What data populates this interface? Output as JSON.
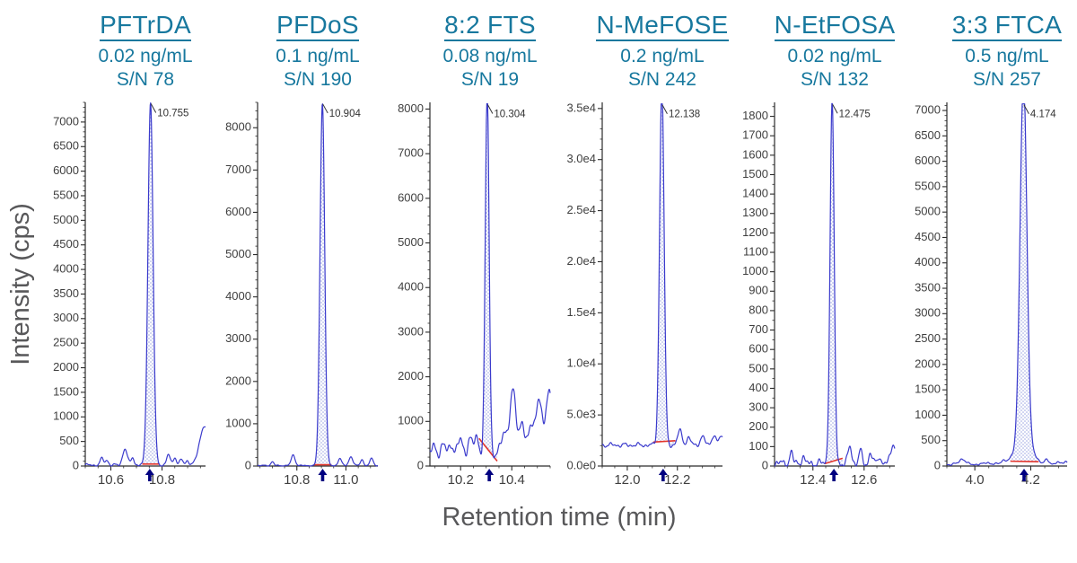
{
  "figure": {
    "y_axis_title": "Intensity (cps)",
    "x_axis_title": "Retention time (min)"
  },
  "colors": {
    "header_teal": "#17789e",
    "trace_blue": "#3a3acc",
    "peak_fill_dot": "#97a0e0",
    "baseline_red": "#e2342b",
    "arrow_navy": "#000080",
    "tick_text": "#3f3f3f",
    "axis_line": "#2b2b2b",
    "axis_title_gray": "#58585a",
    "peak_label_text": "#333333"
  },
  "chart_data": [
    {
      "type": "line",
      "analyte": "PFTrDA",
      "concentration": "0.02 ng/mL",
      "signal_to_noise": "S/N 78",
      "peak_label": "10.755",
      "peak_retention_min": 10.755,
      "arrow_retention_min": 10.752,
      "xlim": [
        10.5,
        10.97
      ],
      "ylim_top": 7400,
      "apex_cps": 7390,
      "baseline_cps": 18,
      "noise_cps": 35,
      "integration_baseline": {
        "start": [
          10.723,
          40
        ],
        "end": [
          10.79,
          40
        ]
      },
      "y_ticks": {
        "values": [
          0,
          500,
          1000,
          1500,
          2000,
          2500,
          3000,
          3500,
          4000,
          4500,
          5000,
          5500,
          6000,
          6500,
          7000
        ],
        "labels": [
          "0",
          "500",
          "1000",
          "1500",
          "2000",
          "2500",
          "3000",
          "3500",
          "4000",
          "4500",
          "5000",
          "5500",
          "6000",
          "6500",
          "7000"
        ]
      },
      "y_minor_step": 100,
      "x_ticks": {
        "values": [
          10.6,
          10.8
        ],
        "labels": [
          "10.6",
          "10.8"
        ]
      },
      "x_minor_step": 0.05
    },
    {
      "type": "line",
      "analyte": "PFDoS",
      "concentration": "0.1 ng/mL",
      "signal_to_noise": "S/N 190",
      "peak_label": "10.904",
      "peak_retention_min": 10.904,
      "arrow_retention_min": 10.905,
      "xlim": [
        10.64,
        11.13
      ],
      "ylim_top": 8600,
      "apex_cps": 8580,
      "baseline_cps": 10,
      "noise_cps": 18,
      "integration_baseline": {
        "start": [
          10.869,
          30
        ],
        "end": [
          10.941,
          30
        ]
      },
      "y_ticks": {
        "values": [
          0,
          1000,
          2000,
          3000,
          4000,
          5000,
          6000,
          7000,
          8000
        ],
        "labels": [
          "0",
          "1000",
          "2000",
          "3000",
          "4000",
          "5000",
          "6000",
          "7000",
          "8000"
        ]
      },
      "y_minor_step": 200,
      "x_ticks": {
        "values": [
          10.8,
          11.0
        ],
        "labels": [
          "10.8",
          "11.0"
        ]
      },
      "x_minor_step": 0.05
    },
    {
      "type": "line",
      "analyte": "8:2 FTS",
      "concentration": "0.08 ng/mL",
      "signal_to_noise": "S/N 19",
      "peak_label": "10.304",
      "peak_retention_min": 10.304,
      "arrow_retention_min": 10.312,
      "xlim": [
        10.08,
        10.55
      ],
      "ylim_top": 8150,
      "apex_cps": 8120,
      "baseline_cps": 260,
      "noise_cps": 150,
      "integration_baseline": {
        "start": [
          10.272,
          620
        ],
        "end": [
          10.343,
          110
        ]
      },
      "y_ticks": {
        "values": [
          0,
          1000,
          2000,
          3000,
          4000,
          5000,
          6000,
          7000,
          8000
        ],
        "labels": [
          "0",
          "1000",
          "2000",
          "3000",
          "4000",
          "5000",
          "6000",
          "7000",
          "8000"
        ]
      },
      "y_minor_step": 200,
      "x_ticks": {
        "values": [
          10.2,
          10.4
        ],
        "labels": [
          "10.2",
          "10.4"
        ]
      },
      "x_minor_step": 0.05
    },
    {
      "type": "line",
      "analyte": "N-MeFOSE",
      "concentration": "0.2 ng/mL",
      "signal_to_noise": "S/N 242",
      "peak_label": "12.138",
      "peak_retention_min": 12.138,
      "arrow_retention_min": 12.143,
      "xlim": [
        11.9,
        12.38
      ],
      "ylim_top": 35600,
      "apex_cps": 35450,
      "baseline_cps": 2050,
      "noise_cps": 260,
      "integration_baseline": {
        "start": [
          12.104,
          2350
        ],
        "end": [
          12.192,
          2480
        ]
      },
      "y_ticks": {
        "values": [
          0,
          5000,
          10000,
          15000,
          20000,
          25000,
          30000,
          35000
        ],
        "labels": [
          "0.0e0",
          "5.0e3",
          "1.0e4",
          "1.5e4",
          "2.0e4",
          "2.5e4",
          "3.0e4",
          "3.5e4"
        ]
      },
      "y_minor_step": 1000,
      "x_ticks": {
        "values": [
          12.0,
          12.2
        ],
        "labels": [
          "12.0",
          "12.2"
        ]
      },
      "x_minor_step": 0.05
    },
    {
      "type": "line",
      "analyte": "N-EtFOSA",
      "concentration": "0.02 ng/mL",
      "signal_to_noise": "S/N 132",
      "peak_label": "12.475",
      "peak_retention_min": 12.475,
      "arrow_retention_min": 12.482,
      "xlim": [
        12.25,
        12.72
      ],
      "ylim_top": 1872,
      "apex_cps": 1866,
      "baseline_cps": 14,
      "noise_cps": 26,
      "integration_baseline": {
        "start": [
          12.446,
          12
        ],
        "end": [
          12.516,
          40
        ]
      },
      "y_ticks": {
        "values": [
          0,
          100,
          200,
          300,
          400,
          500,
          600,
          700,
          800,
          900,
          1000,
          1100,
          1200,
          1300,
          1400,
          1500,
          1600,
          1700,
          1800
        ],
        "labels": [
          "0",
          "100",
          "200",
          "300",
          "400",
          "500",
          "600",
          "700",
          "800",
          "900",
          "1000",
          "1100",
          "1200",
          "1300",
          "1400",
          "1500",
          "1600",
          "1700",
          "1800"
        ]
      },
      "y_minor_step": 50,
      "x_ticks": {
        "values": [
          12.4,
          12.6
        ],
        "labels": [
          "12.4",
          "12.6"
        ]
      },
      "x_minor_step": 0.05
    },
    {
      "type": "line",
      "analyte": "3:3 FTCA",
      "concentration": "0.5 ng/mL",
      "signal_to_noise": "S/N 257",
      "peak_label": "4.174",
      "peak_retention_min": 4.174,
      "arrow_retention_min": 4.176,
      "xlim": [
        3.9,
        4.33
      ],
      "ylim_top": 7160,
      "apex_cps": 7130,
      "baseline_cps": 35,
      "noise_cps": 28,
      "integration_baseline": {
        "start": [
          4.127,
          95
        ],
        "end": [
          4.228,
          85
        ]
      },
      "y_ticks": {
        "values": [
          0,
          500,
          1000,
          1500,
          2000,
          2500,
          3000,
          3500,
          4000,
          4500,
          5000,
          5500,
          6000,
          6500,
          7000
        ],
        "labels": [
          "0",
          "500",
          "1000",
          "1500",
          "2000",
          "2500",
          "3000",
          "3500",
          "4000",
          "4500",
          "5000",
          "5500",
          "6000",
          "6500",
          "7000"
        ]
      },
      "y_minor_step": 100,
      "x_ticks": {
        "values": [
          4.0,
          4.2
        ],
        "labels": [
          "4.0",
          "4.2"
        ]
      },
      "x_minor_step": 0.05
    }
  ]
}
